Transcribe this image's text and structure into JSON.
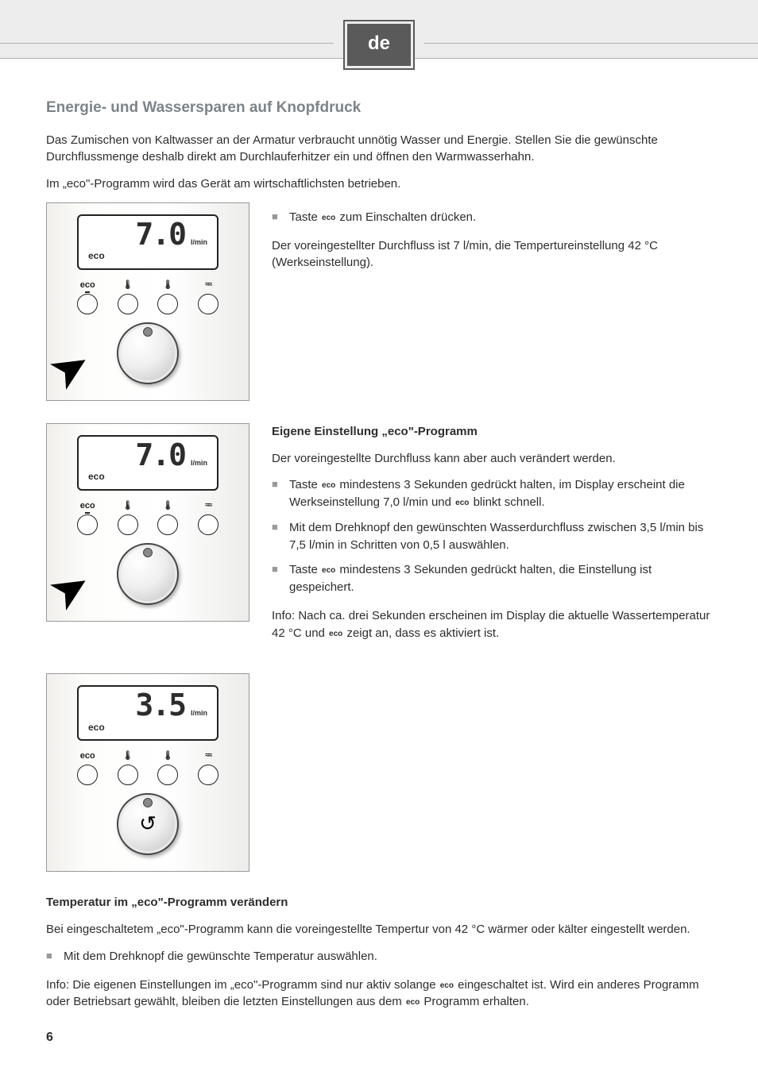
{
  "lang_tab": "de",
  "page_number": "6",
  "section_title": "Energie- und Wassersparen auf Knopfdruck",
  "intro_p1": "Das Zumischen von Kaltwasser an der Armatur verbraucht unnötig Wasser und Energie. Stellen Sie die gewünschte Durchflussmenge deshalb direkt am Durchlauferhitzer ein und öffnen den Warmwasserhahn.",
  "intro_p2": "Im „eco\"-Programm wird das Gerät am wirtschaftlichsten betrieben.",
  "eco_label": "eco",
  "unit_lmin": "l/min",
  "block1": {
    "lcd_value": "7.0",
    "bullet1_a": "Taste ",
    "bullet1_b": " zum Einschalten drücken.",
    "p1": "Der voreingestellter Durchfluss ist 7 l/min, die Tempertureinstellung 42 °C (Werkseinstellung)."
  },
  "block2": {
    "lcd_value": "7.0",
    "heading": "Eigene Einstellung „eco\"-Programm",
    "p1": "Der voreingestellte Durchfluss kann aber auch verändert werden.",
    "b1a": "Taste ",
    "b1b": " mindestens 3 Sekunden gedrückt halten, im Display erscheint die Werkseinstellung 7,0 l/min und ",
    "b1c": " blinkt schnell.",
    "b2": "Mit dem Drehknopf den gewünschten Wasserdurchfluss zwischen 3,5 l/min bis 7,5 l/min in Schritten von 0,5 l auswählen.",
    "b3a": "Taste ",
    "b3b": " mindestens 3 Sekunden gedrückt halten, die Einstellung ist gespeichert.",
    "p2a": "Info: Nach ca. drei Sekunden erscheinen im Display die aktuelle Wassertemperatur 42 °C und ",
    "p2b": " zeigt an, dass es aktiviert ist."
  },
  "block3": {
    "lcd_value": "3.5"
  },
  "temp_section": {
    "heading": "Temperatur im „eco\"-Programm verändern",
    "p1": "Bei eingeschaltetem „eco\"-Programm kann die voreingestellte Tempertur von 42 °C wärmer oder kälter eingestellt werden.",
    "b1": "Mit dem Drehknopf die gewünschte Temperatur auswählen.",
    "p2a": "Info: Die eigenen Einstellungen im „eco\"-Programm sind nur aktiv solange ",
    "p2b": " eingeschaltet ist. Wird ein anderes Programm oder Betriebsart gewählt, bleiben die letzten Einstellungen aus dem ",
    "p2c": " Programm erhalten."
  },
  "device_buttons": {
    "b1": "eco",
    "thermo_filled": "🌡",
    "thermo_outline": "🌡",
    "wave": "≈≈"
  }
}
